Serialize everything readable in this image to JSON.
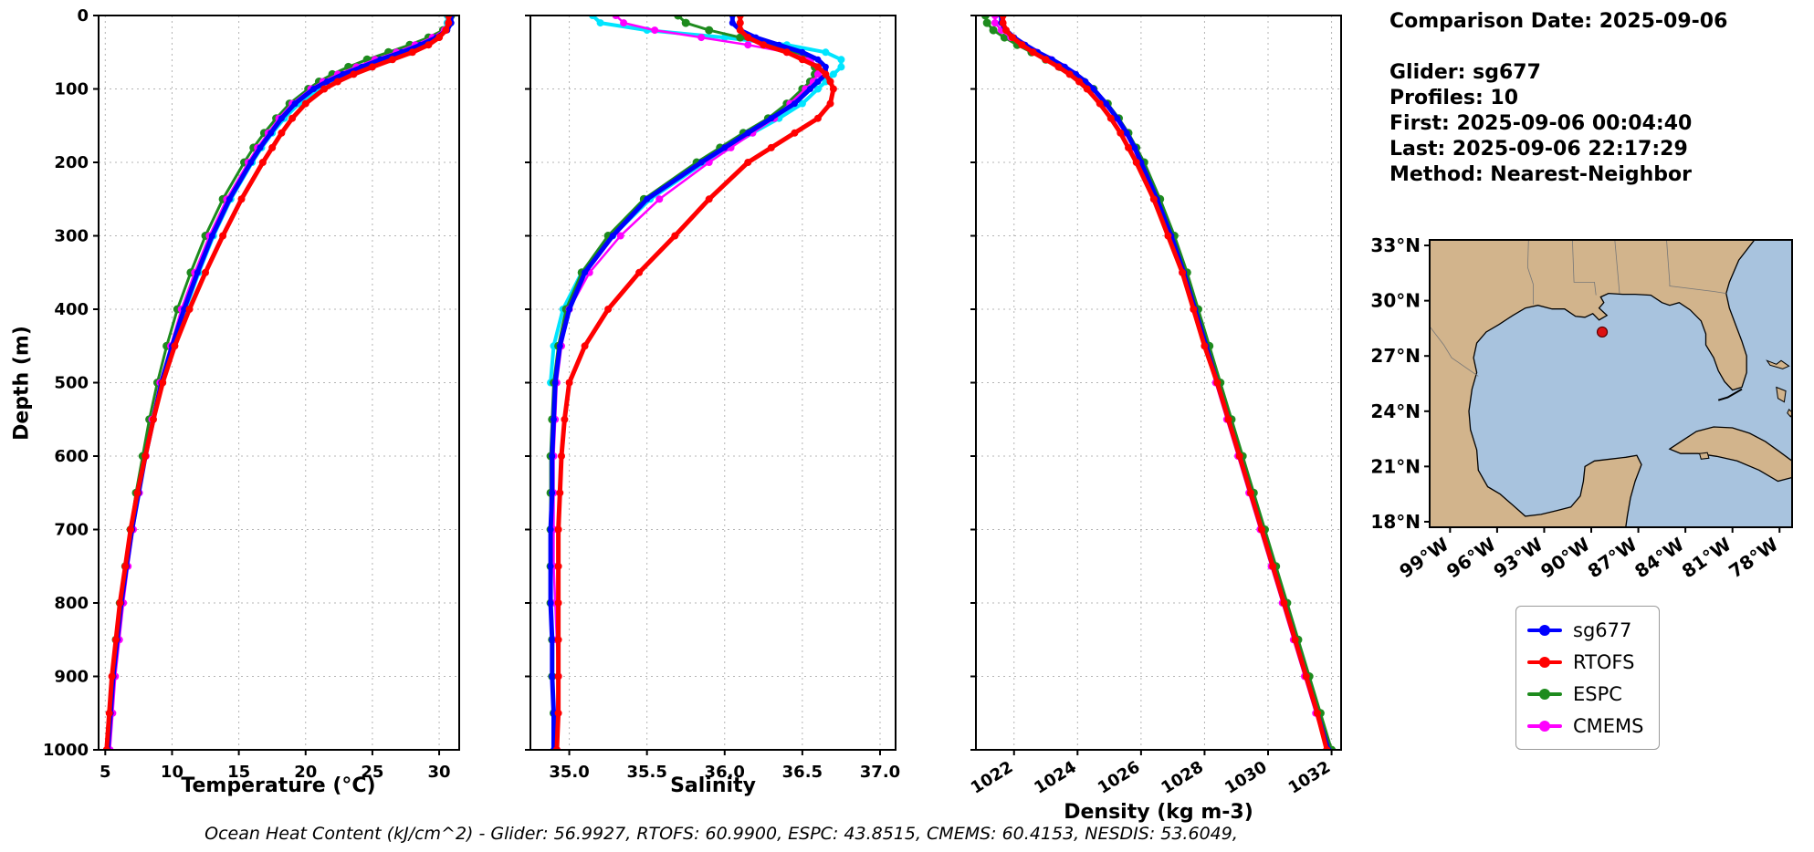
{
  "info": {
    "comparison_date": "Comparison Date: 2025-09-06",
    "glider": "Glider: sg677",
    "profiles": "Profiles: 10",
    "first": "First: 2025-09-06 00:04:40",
    "last": "Last: 2025-09-06 22:17:29",
    "method": "Method: Nearest-Neighbor"
  },
  "footer": {
    "ohc": "Ocean Heat Content (kJ/cm^2) - Glider: 56.9927,  RTOFS: 60.9900,  ESPC: 43.8515,  CMEMS: 60.4153,  NESDIS: 53.6049,"
  },
  "legend": {
    "items": [
      {
        "label": "sg677",
        "color": "#0000ff"
      },
      {
        "label": "RTOFS",
        "color": "#ff0000"
      },
      {
        "label": "ESPC",
        "color": "#1e8b1e"
      },
      {
        "label": "CMEMS",
        "color": "#ff00ff"
      }
    ]
  },
  "map": {
    "extent": {
      "lon_min": -100.3,
      "lon_max": -77.2,
      "lat_min": 17.7,
      "lat_max": 33.3
    },
    "lat_values": [
      33,
      30,
      27,
      24,
      21,
      18
    ],
    "lat_labels": [
      "33°N",
      "30°N",
      "27°N",
      "24°N",
      "21°N",
      "18°N"
    ],
    "lon_values": [
      -99,
      -96,
      -93,
      -90,
      -87,
      -84,
      -81,
      -78
    ],
    "lon_labels": [
      "99°W",
      "96°W",
      "93°W",
      "90°W",
      "87°W",
      "84°W",
      "81°W",
      "78°W"
    ],
    "marker": {
      "lon": -89.3,
      "lat": 28.3,
      "color": "#dd1111"
    },
    "land_color": "#d2b48c",
    "water_color": "#a8c3de"
  },
  "chart_data": [
    {
      "type": "line",
      "title": "",
      "xlabel": "Temperature (°C)",
      "ylabel": "Depth (m)",
      "xlim": [
        4.5,
        31.5
      ],
      "ylim": [
        0,
        1000
      ],
      "grid": true,
      "legend_position": "outside-right",
      "xtick_values": [
        5,
        10,
        15,
        20,
        25,
        30
      ],
      "xtick_labels": [
        "5",
        "10",
        "15",
        "20",
        "25",
        "30"
      ],
      "ytick_values": [
        0,
        100,
        200,
        300,
        400,
        500,
        600,
        700,
        800,
        900,
        1000
      ],
      "ytick_labels": [
        "0",
        "100",
        "200",
        "300",
        "400",
        "500",
        "600",
        "700",
        "800",
        "900",
        "1000"
      ],
      "depths": [
        0,
        10,
        20,
        30,
        40,
        50,
        60,
        70,
        80,
        90,
        100,
        120,
        140,
        160,
        180,
        200,
        250,
        300,
        350,
        400,
        450,
        500,
        550,
        600,
        650,
        700,
        750,
        800,
        850,
        900,
        950,
        1000
      ],
      "series": [
        {
          "name": "sg677",
          "color": "#0000ff",
          "lw": 5,
          "r": 3.5,
          "z": 4,
          "values": [
            30.9,
            30.9,
            30.6,
            29.8,
            28.6,
            27.2,
            25.6,
            24.2,
            22.8,
            21.6,
            20.6,
            19.2,
            18.2,
            17.4,
            16.6,
            15.9,
            14.3,
            13.0,
            11.9,
            10.9,
            10.0,
            9.2,
            8.6,
            8.0,
            7.5,
            7.0,
            6.6,
            6.2,
            5.9,
            5.6,
            5.4,
            5.2
          ]
        },
        {
          "name": "RTOFS",
          "color": "#ff0000",
          "lw": 5,
          "r": 4,
          "z": 5,
          "values": [
            30.7,
            30.7,
            30.5,
            30.0,
            29.2,
            28.0,
            26.5,
            25.0,
            23.6,
            22.4,
            21.4,
            20.0,
            19.0,
            18.2,
            17.5,
            16.8,
            15.2,
            13.8,
            12.5,
            11.3,
            10.2,
            9.3,
            8.6,
            8.0,
            7.4,
            6.9,
            6.5,
            6.1,
            5.8,
            5.5,
            5.3,
            5.1
          ]
        },
        {
          "name": "ESPC",
          "color": "#1e8b1e",
          "lw": 3,
          "r": 4.5,
          "z": 2,
          "values": [
            30.9,
            30.8,
            30.3,
            29.2,
            27.8,
            26.2,
            24.6,
            23.2,
            22.0,
            21.0,
            20.2,
            18.8,
            17.8,
            16.9,
            16.1,
            15.4,
            13.8,
            12.5,
            11.4,
            10.4,
            9.6,
            8.9,
            8.3,
            7.8,
            7.3,
            6.9,
            6.5,
            6.1,
            5.8,
            5.6,
            5.4,
            5.2
          ]
        },
        {
          "name": "CMEMS",
          "color": "#ff00ff",
          "lw": 2.5,
          "r": 4,
          "z": 3,
          "values": [
            30.8,
            30.8,
            30.4,
            29.5,
            28.2,
            26.8,
            25.2,
            23.8,
            22.4,
            21.3,
            20.4,
            19.0,
            18.0,
            17.2,
            16.4,
            15.7,
            14.1,
            12.8,
            11.7,
            10.7,
            9.9,
            9.1,
            8.5,
            8.05,
            7.55,
            7.1,
            6.7,
            6.35,
            6.05,
            5.75,
            5.55,
            5.35
          ]
        },
        {
          "name": "NESDIS",
          "color": "#00e5ff",
          "lw": 4,
          "r": 4,
          "z": 1,
          "values": [
            30.6,
            30.6,
            30.4,
            29.9,
            29.0,
            27.8,
            26.3,
            24.8,
            23.3,
            22.0,
            21.0,
            19.5,
            18.4,
            17.5,
            16.7,
            16.0,
            14.4,
            13.1,
            12.0,
            11.0,
            10.1,
            9.3,
            null,
            null,
            null,
            null,
            null,
            null,
            null,
            null,
            null,
            null
          ]
        }
      ]
    },
    {
      "type": "line",
      "title": "",
      "xlabel": "Salinity",
      "ylabel": "",
      "xlim": [
        34.75,
        37.1
      ],
      "ylim": [
        0,
        1000
      ],
      "grid": true,
      "xtick_values": [
        35.0,
        35.5,
        36.0,
        36.5,
        37.0
      ],
      "xtick_labels": [
        "35.0",
        "35.5",
        "36.0",
        "36.5",
        "37.0"
      ],
      "ytick_values": [
        0,
        100,
        200,
        300,
        400,
        500,
        600,
        700,
        800,
        900,
        1000
      ],
      "ytick_labels": [],
      "depths": [
        0,
        10,
        20,
        30,
        40,
        50,
        60,
        70,
        80,
        90,
        100,
        120,
        140,
        160,
        180,
        200,
        250,
        300,
        350,
        400,
        450,
        500,
        550,
        600,
        650,
        700,
        750,
        800,
        850,
        900,
        950,
        1000
      ],
      "series": [
        {
          "name": "sg677",
          "color": "#0000ff",
          "lw": 5,
          "r": 3.5,
          "z": 4,
          "values": [
            36.05,
            36.05,
            36.1,
            36.2,
            36.35,
            36.5,
            36.6,
            36.65,
            36.65,
            36.6,
            36.55,
            36.45,
            36.3,
            36.15,
            36.0,
            35.85,
            35.5,
            35.28,
            35.1,
            35.0,
            34.94,
            34.91,
            34.9,
            34.89,
            34.89,
            34.88,
            34.88,
            34.88,
            34.89,
            34.89,
            34.9,
            34.9
          ]
        },
        {
          "name": "RTOFS",
          "color": "#ff0000",
          "lw": 5,
          "r": 4,
          "z": 5,
          "values": [
            36.1,
            36.1,
            36.1,
            36.15,
            36.25,
            36.4,
            36.5,
            36.6,
            36.65,
            36.68,
            36.7,
            36.68,
            36.6,
            36.45,
            36.3,
            36.15,
            35.9,
            35.68,
            35.45,
            35.25,
            35.1,
            35.0,
            34.97,
            34.95,
            34.94,
            34.93,
            34.93,
            34.93,
            34.93,
            34.93,
            34.93,
            34.92
          ]
        },
        {
          "name": "ESPC",
          "color": "#1e8b1e",
          "lw": 3,
          "r": 4.5,
          "z": 2,
          "values": [
            35.7,
            35.75,
            35.9,
            36.1,
            36.3,
            36.45,
            36.55,
            36.58,
            36.58,
            36.55,
            36.5,
            36.4,
            36.28,
            36.12,
            35.97,
            35.82,
            35.48,
            35.25,
            35.08,
            34.98,
            34.93,
            34.9,
            34.89,
            34.88,
            34.88,
            34.88,
            34.88,
            34.88,
            34.89,
            34.89,
            34.9,
            34.91
          ]
        },
        {
          "name": "CMEMS",
          "color": "#ff00ff",
          "lw": 2.5,
          "r": 4,
          "z": 3,
          "values": [
            35.3,
            35.35,
            35.55,
            35.85,
            36.15,
            36.4,
            36.55,
            36.6,
            36.6,
            36.57,
            36.52,
            36.42,
            36.32,
            36.18,
            36.04,
            35.9,
            35.58,
            35.33,
            35.13,
            35.0,
            34.95,
            34.92,
            34.91,
            34.9,
            34.9,
            34.9,
            34.9,
            34.91,
            34.92,
            34.93,
            34.92,
            34.92
          ]
        },
        {
          "name": "NESDIS",
          "color": "#00e5ff",
          "lw": 4,
          "r": 4,
          "z": 1,
          "values": [
            35.15,
            35.2,
            35.5,
            36.0,
            36.4,
            36.65,
            36.75,
            36.75,
            36.7,
            36.65,
            36.6,
            36.5,
            36.35,
            36.18,
            36.02,
            35.87,
            35.52,
            35.28,
            35.08,
            34.96,
            34.9,
            34.88,
            null,
            null,
            null,
            null,
            null,
            null,
            null,
            null,
            null,
            null
          ]
        }
      ]
    },
    {
      "type": "line",
      "title": "",
      "xlabel": "Density (kg m-3)",
      "ylabel": "",
      "xlim": [
        1020.8,
        1032.3
      ],
      "ylim": [
        0,
        1000
      ],
      "grid": true,
      "xtick_values": [
        1022,
        1024,
        1026,
        1028,
        1030,
        1032
      ],
      "xtick_labels": [
        "1022",
        "1024",
        "1026",
        "1028",
        "1030",
        "1032"
      ],
      "ytick_values": [
        0,
        100,
        200,
        300,
        400,
        500,
        600,
        700,
        800,
        900,
        1000
      ],
      "ytick_labels": [],
      "depths": [
        0,
        10,
        20,
        30,
        40,
        50,
        60,
        70,
        80,
        90,
        100,
        120,
        140,
        160,
        180,
        200,
        250,
        300,
        350,
        400,
        450,
        500,
        550,
        600,
        650,
        700,
        750,
        800,
        850,
        900,
        950,
        1000
      ],
      "series": [
        {
          "name": "sg677",
          "color": "#0000ff",
          "lw": 5,
          "r": 3.5,
          "z": 4,
          "values": [
            1021.6,
            1021.6,
            1021.75,
            1022.0,
            1022.35,
            1022.75,
            1023.2,
            1023.6,
            1023.95,
            1024.25,
            1024.5,
            1024.9,
            1025.25,
            1025.55,
            1025.8,
            1026.0,
            1026.5,
            1026.95,
            1027.35,
            1027.7,
            1028.05,
            1028.4,
            1028.75,
            1029.1,
            1029.45,
            1029.8,
            1030.15,
            1030.5,
            1030.85,
            1031.2,
            1031.55,
            1031.9
          ]
        },
        {
          "name": "RTOFS",
          "color": "#ff0000",
          "lw": 5,
          "r": 4,
          "z": 5,
          "values": [
            1021.65,
            1021.65,
            1021.75,
            1021.95,
            1022.25,
            1022.6,
            1023.0,
            1023.4,
            1023.75,
            1024.05,
            1024.3,
            1024.7,
            1025.05,
            1025.35,
            1025.6,
            1025.85,
            1026.4,
            1026.85,
            1027.3,
            1027.65,
            1028.0,
            1028.4,
            1028.75,
            1029.1,
            1029.45,
            1029.8,
            1030.15,
            1030.5,
            1030.85,
            1031.2,
            1031.55,
            1031.85
          ]
        },
        {
          "name": "ESPC",
          "color": "#1e8b1e",
          "lw": 3,
          "r": 4.5,
          "z": 2,
          "values": [
            1021.1,
            1021.15,
            1021.35,
            1021.7,
            1022.1,
            1022.55,
            1023.0,
            1023.45,
            1023.85,
            1024.2,
            1024.5,
            1024.95,
            1025.3,
            1025.6,
            1025.85,
            1026.1,
            1026.6,
            1027.05,
            1027.45,
            1027.8,
            1028.15,
            1028.5,
            1028.85,
            1029.2,
            1029.55,
            1029.9,
            1030.25,
            1030.6,
            1030.95,
            1031.3,
            1031.65,
            1032.0
          ]
        },
        {
          "name": "CMEMS",
          "color": "#ff00ff",
          "lw": 2.5,
          "r": 4,
          "z": 3,
          "values": [
            1021.4,
            1021.4,
            1021.6,
            1021.9,
            1022.3,
            1022.7,
            1023.15,
            1023.55,
            1023.9,
            1024.2,
            1024.45,
            1024.85,
            1025.2,
            1025.5,
            1025.75,
            1025.95,
            1026.45,
            1026.9,
            1027.3,
            1027.65,
            1028.0,
            1028.35,
            1028.7,
            1029.05,
            1029.4,
            1029.75,
            1030.1,
            1030.45,
            1030.8,
            1031.15,
            1031.5,
            1031.85
          ]
        }
      ]
    }
  ]
}
